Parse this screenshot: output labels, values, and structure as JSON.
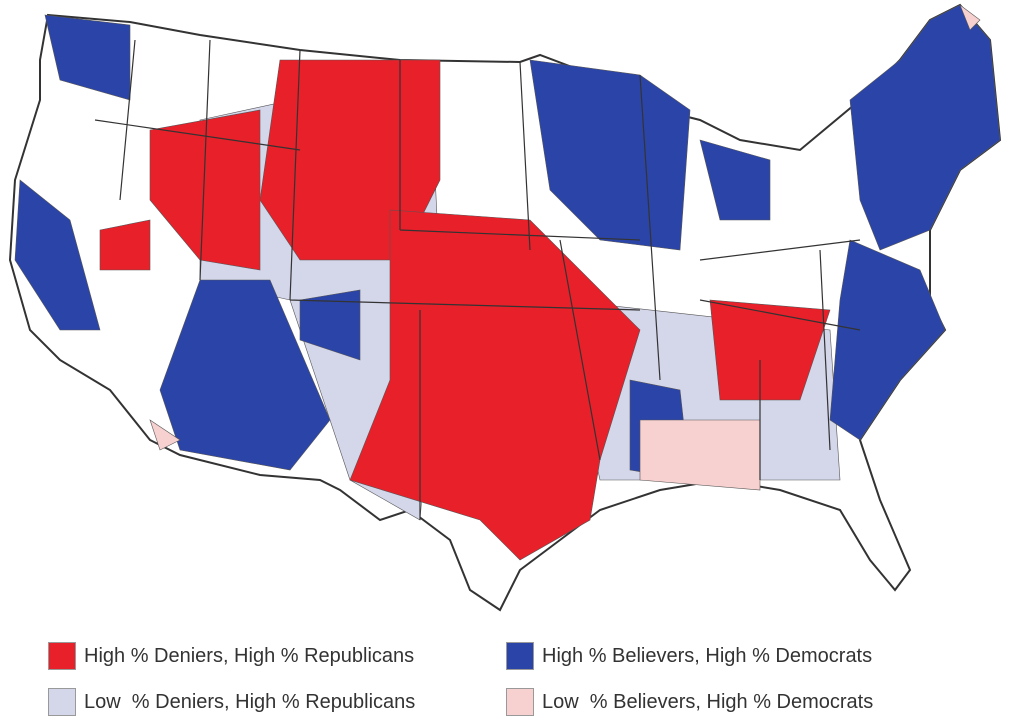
{
  "colors": {
    "high_deniers_high_republicans": "#e8202a",
    "high_believers_high_democrats": "#2b44a8",
    "low_deniers_high_republicans": "#d4d6ea",
    "low_believers_high_democrats": "#f7d0d0",
    "neutral": "#ffffff",
    "border": "#333333"
  },
  "legend": [
    {
      "label": "High % Deniers, High % Republicans",
      "color": "#e8202a"
    },
    {
      "label": "High % Believers, High % Democrats",
      "color": "#2b44a8"
    },
    {
      "label": "Low  % Deniers, High % Republicans",
      "color": "#d4d6ea"
    },
    {
      "label": "Low  % Believers, High % Democrats",
      "color": "#f7d0d0"
    }
  ]
}
